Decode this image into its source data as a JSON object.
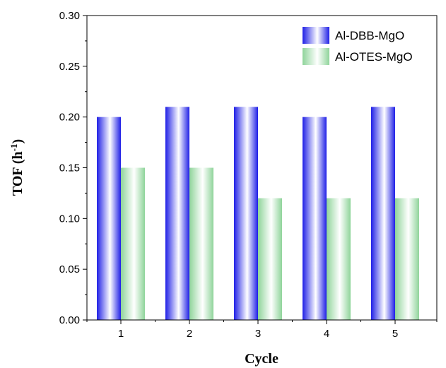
{
  "chart_data": {
    "type": "bar",
    "xlabel": "Cycle",
    "ylabel_main": "TOF (h",
    "ylabel_sup": "-1",
    "ylabel_close": ")",
    "categories": [
      "1",
      "2",
      "3",
      "4",
      "5"
    ],
    "series": [
      {
        "name": "Al-DBB-MgO",
        "values": [
          0.2,
          0.21,
          0.21,
          0.2,
          0.21
        ],
        "color": "#2a2ae0"
      },
      {
        "name": "Al-OTES-MgO",
        "values": [
          0.15,
          0.15,
          0.12,
          0.12,
          0.12
        ],
        "color": "#9fd9a3"
      }
    ],
    "ylim": [
      0,
      0.3
    ],
    "yticks": [
      "0.00",
      "0.05",
      "0.10",
      "0.15",
      "0.20",
      "0.25",
      "0.30"
    ],
    "legend_position": "top-right",
    "grid": false
  }
}
